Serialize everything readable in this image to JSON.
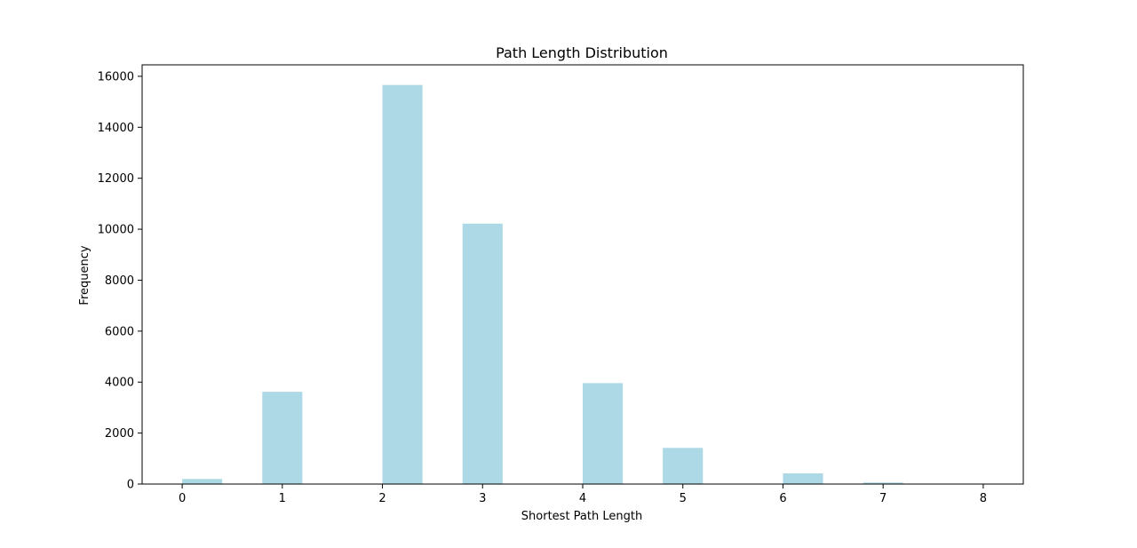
{
  "chart_data": {
    "type": "bar",
    "title": "Path Length Distribution",
    "xlabel": "Shortest Path Length",
    "ylabel": "Frequency",
    "bins": [
      {
        "x_start": 0.0,
        "x_end": 0.4,
        "value": 200
      },
      {
        "x_start": 0.8,
        "x_end": 1.2,
        "value": 3620
      },
      {
        "x_start": 2.0,
        "x_end": 2.4,
        "value": 15660
      },
      {
        "x_start": 2.8,
        "x_end": 3.2,
        "value": 10220
      },
      {
        "x_start": 4.0,
        "x_end": 4.4,
        "value": 3960
      },
      {
        "x_start": 4.8,
        "x_end": 5.2,
        "value": 1420
      },
      {
        "x_start": 6.0,
        "x_end": 6.4,
        "value": 420
      },
      {
        "x_start": 6.8,
        "x_end": 7.2,
        "value": 60
      },
      {
        "x_start": 7.6,
        "x_end": 8.0,
        "value": 15
      }
    ],
    "xlim": [
      -0.4,
      8.4
    ],
    "ylim": [
      0,
      16450
    ],
    "xticks": [
      "0",
      "1",
      "2",
      "3",
      "4",
      "5",
      "6",
      "7",
      "8"
    ],
    "yticks": [
      "0",
      "2000",
      "4000",
      "6000",
      "8000",
      "10000",
      "12000",
      "14000",
      "16000"
    ],
    "bar_color": "#add8e6",
    "grid": false,
    "legend": "none"
  }
}
